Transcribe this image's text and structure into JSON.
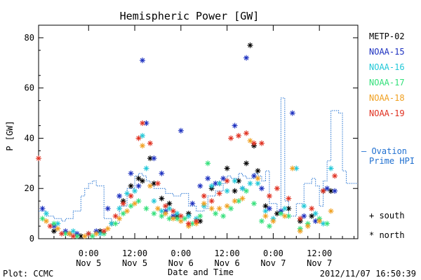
{
  "chart_data": {
    "type": "scatter",
    "title": "Hemispheric Power [GW]",
    "ylabel": "P [GW]",
    "xlabel": "Date and Time",
    "ylim": [
      0,
      85
    ],
    "yticks": [
      0,
      20,
      40,
      60,
      80
    ],
    "xlim": [
      -13,
      70
    ],
    "x_units": "hours from 2012-11-05 00:00",
    "xticks": [
      {
        "x": 0,
        "line1": "0:00",
        "line2": "Nov 5"
      },
      {
        "x": 12,
        "line1": "12:00",
        "line2": "Nov 5"
      },
      {
        "x": 24,
        "line1": "0:00",
        "line2": "Nov 6"
      },
      {
        "x": 36,
        "line1": "12:00",
        "line2": "Nov 6"
      },
      {
        "x": 48,
        "line1": "0:00",
        "line2": "Nov 7"
      },
      {
        "x": 60,
        "line1": "12:00",
        "line2": "Nov 7"
      }
    ],
    "grid": false,
    "legend_position": "right",
    "series": [
      {
        "name": "METP-02",
        "color": "#000000",
        "marker": "*",
        "points": [
          [
            -9,
            3
          ],
          [
            -5,
            2
          ],
          [
            -2,
            1
          ],
          [
            3,
            3
          ],
          [
            6,
            6
          ],
          [
            9,
            15
          ],
          [
            11,
            21
          ],
          [
            13,
            24
          ],
          [
            14,
            23
          ],
          [
            16,
            32
          ],
          [
            17,
            22
          ],
          [
            19,
            16
          ],
          [
            21,
            14
          ],
          [
            23,
            9
          ],
          [
            26,
            10
          ],
          [
            29,
            7
          ],
          [
            32,
            20
          ],
          [
            34,
            22
          ],
          [
            36,
            28
          ],
          [
            38,
            19
          ],
          [
            39,
            23
          ],
          [
            41,
            30
          ],
          [
            42,
            77
          ],
          [
            43,
            37
          ],
          [
            44,
            27
          ],
          [
            46,
            13
          ],
          [
            49,
            10
          ],
          [
            52,
            12
          ],
          [
            55,
            7
          ],
          [
            58,
            9
          ],
          [
            61,
            19
          ],
          [
            63,
            19
          ]
        ]
      },
      {
        "name": "NOAA-15",
        "color": "#1b2fbf",
        "marker": "*",
        "points": [
          [
            -12,
            12
          ],
          [
            -9,
            5
          ],
          [
            -6,
            3
          ],
          [
            -3,
            2
          ],
          [
            2,
            3
          ],
          [
            5,
            12
          ],
          [
            8,
            17
          ],
          [
            11,
            26
          ],
          [
            13,
            21
          ],
          [
            14,
            71
          ],
          [
            15,
            46
          ],
          [
            17,
            32
          ],
          [
            19,
            26
          ],
          [
            20,
            11
          ],
          [
            22,
            9
          ],
          [
            24,
            43
          ],
          [
            27,
            14
          ],
          [
            29,
            21
          ],
          [
            31,
            24
          ],
          [
            33,
            22
          ],
          [
            35,
            24
          ],
          [
            38,
            45
          ],
          [
            40,
            20
          ],
          [
            41,
            72
          ],
          [
            43,
            25
          ],
          [
            45,
            20
          ],
          [
            47,
            12
          ],
          [
            50,
            11
          ],
          [
            53,
            50
          ],
          [
            56,
            9
          ],
          [
            59,
            7
          ],
          [
            62,
            20
          ],
          [
            64,
            19
          ]
        ]
      },
      {
        "name": "NOAA-16",
        "color": "#22c8d8",
        "marker": "*",
        "points": [
          [
            -11,
            10
          ],
          [
            -8,
            6
          ],
          [
            -4,
            3
          ],
          [
            0,
            2
          ],
          [
            3,
            2
          ],
          [
            6,
            6
          ],
          [
            8,
            12
          ],
          [
            10,
            18
          ],
          [
            12,
            19
          ],
          [
            14,
            41
          ],
          [
            15,
            28
          ],
          [
            17,
            15
          ],
          [
            19,
            11
          ],
          [
            21,
            12
          ],
          [
            23,
            10
          ],
          [
            26,
            9
          ],
          [
            28,
            8
          ],
          [
            30,
            13
          ],
          [
            32,
            21
          ],
          [
            34,
            22
          ],
          [
            36,
            19
          ],
          [
            38,
            23
          ],
          [
            40,
            20
          ],
          [
            42,
            22
          ],
          [
            44,
            22
          ],
          [
            46,
            11
          ],
          [
            48,
            8
          ],
          [
            51,
            12
          ],
          [
            54,
            28
          ],
          [
            56,
            13
          ],
          [
            59,
            10
          ],
          [
            61,
            6
          ],
          [
            63,
            28
          ]
        ]
      },
      {
        "name": "NOAA-17",
        "color": "#33e07a",
        "marker": "*",
        "points": [
          [
            -12,
            8
          ],
          [
            -9,
            6
          ],
          [
            -6,
            2
          ],
          [
            -3,
            1
          ],
          [
            1,
            1
          ],
          [
            4,
            2
          ],
          [
            7,
            6
          ],
          [
            9,
            10
          ],
          [
            11,
            13
          ],
          [
            13,
            15
          ],
          [
            15,
            12
          ],
          [
            17,
            10
          ],
          [
            19,
            9
          ],
          [
            21,
            8
          ],
          [
            23,
            8
          ],
          [
            25,
            8
          ],
          [
            27,
            6
          ],
          [
            29,
            9
          ],
          [
            31,
            30
          ],
          [
            33,
            10
          ],
          [
            35,
            9
          ],
          [
            37,
            12
          ],
          [
            39,
            15
          ],
          [
            41,
            19
          ],
          [
            43,
            14
          ],
          [
            45,
            7
          ],
          [
            47,
            5
          ],
          [
            50,
            10
          ],
          [
            52,
            9
          ],
          [
            55,
            4
          ],
          [
            57,
            6
          ],
          [
            60,
            8
          ],
          [
            62,
            6
          ]
        ]
      },
      {
        "name": "NOAA-18",
        "color": "#f0a020",
        "marker": "*",
        "points": [
          [
            -11,
            7
          ],
          [
            -8,
            4
          ],
          [
            -5,
            2
          ],
          [
            -1,
            1
          ],
          [
            2,
            2
          ],
          [
            5,
            4
          ],
          [
            8,
            8
          ],
          [
            10,
            11
          ],
          [
            12,
            14
          ],
          [
            14,
            37
          ],
          [
            16,
            21
          ],
          [
            18,
            12
          ],
          [
            20,
            10
          ],
          [
            22,
            8
          ],
          [
            24,
            7
          ],
          [
            26,
            5
          ],
          [
            28,
            6
          ],
          [
            30,
            14
          ],
          [
            32,
            12
          ],
          [
            34,
            12
          ],
          [
            36,
            13
          ],
          [
            38,
            15
          ],
          [
            40,
            16
          ],
          [
            42,
            39
          ],
          [
            44,
            24
          ],
          [
            46,
            9
          ],
          [
            48,
            7
          ],
          [
            51,
            9
          ],
          [
            53,
            28
          ],
          [
            55,
            3
          ],
          [
            57,
            5
          ],
          [
            60,
            7
          ],
          [
            63,
            11
          ]
        ]
      },
      {
        "name": "NOAA-19",
        "color": "#e03020",
        "marker": "*",
        "points": [
          [
            -13,
            32
          ],
          [
            -10,
            5
          ],
          [
            -7,
            2
          ],
          [
            -4,
            1
          ],
          [
            0,
            2
          ],
          [
            4,
            3
          ],
          [
            7,
            9
          ],
          [
            9,
            14
          ],
          [
            11,
            17
          ],
          [
            13,
            40
          ],
          [
            14,
            46
          ],
          [
            16,
            38
          ],
          [
            18,
            22
          ],
          [
            20,
            13
          ],
          [
            22,
            11
          ],
          [
            24,
            9
          ],
          [
            26,
            6
          ],
          [
            28,
            7
          ],
          [
            30,
            17
          ],
          [
            32,
            15
          ],
          [
            34,
            18
          ],
          [
            36,
            23
          ],
          [
            37,
            40
          ],
          [
            39,
            41
          ],
          [
            41,
            42
          ],
          [
            43,
            38
          ],
          [
            45,
            38
          ],
          [
            47,
            17
          ],
          [
            49,
            20
          ],
          [
            52,
            16
          ],
          [
            55,
            8
          ],
          [
            58,
            12
          ],
          [
            61,
            19
          ],
          [
            64,
            25
          ]
        ]
      }
    ],
    "ovation": {
      "name": "Ovation Prime HPI",
      "color": "#1e6fd0",
      "style": "dotted-step",
      "steps": [
        [
          -13,
          11
        ],
        [
          -11,
          9
        ],
        [
          -9,
          8
        ],
        [
          -7,
          7
        ],
        [
          -6,
          8
        ],
        [
          -4,
          11
        ],
        [
          -2,
          17
        ],
        [
          -1,
          20
        ],
        [
          0,
          22
        ],
        [
          1,
          23
        ],
        [
          2,
          21
        ],
        [
          4,
          8
        ],
        [
          6,
          6
        ],
        [
          8,
          13
        ],
        [
          10,
          20
        ],
        [
          12,
          25
        ],
        [
          13,
          26
        ],
        [
          14,
          25
        ],
        [
          15,
          23
        ],
        [
          16,
          21
        ],
        [
          17,
          20
        ],
        [
          18,
          20
        ],
        [
          20,
          18
        ],
        [
          22,
          17
        ],
        [
          24,
          18
        ],
        [
          26,
          13
        ],
        [
          28,
          11
        ],
        [
          30,
          12
        ],
        [
          31,
          17
        ],
        [
          33,
          19
        ],
        [
          35,
          22
        ],
        [
          36,
          25
        ],
        [
          37,
          24
        ],
        [
          39,
          26
        ],
        [
          40,
          25
        ],
        [
          41,
          24
        ],
        [
          43,
          26
        ],
        [
          44,
          25
        ],
        [
          45,
          23
        ],
        [
          46,
          27
        ],
        [
          47,
          14
        ],
        [
          49,
          11
        ],
        [
          50,
          56
        ],
        [
          51,
          15
        ],
        [
          52,
          9
        ],
        [
          54,
          14
        ],
        [
          56,
          22
        ],
        [
          58,
          24
        ],
        [
          59,
          21
        ],
        [
          60,
          13
        ],
        [
          61,
          23
        ],
        [
          62,
          31
        ],
        [
          63,
          51
        ],
        [
          65,
          50
        ],
        [
          66,
          27
        ],
        [
          67,
          22
        ]
      ]
    },
    "legend_entries": [
      "METP-02",
      "NOAA-15",
      "NOAA-16",
      "NOAA-17",
      "NOAA-18",
      "NOAA-19"
    ],
    "ovation_label_line1": "— Ovation",
    "ovation_label_line2": "Prime HPI",
    "marker_legend": [
      {
        "symbol": "+",
        "label": "south"
      },
      {
        "symbol": "*",
        "label": "north"
      }
    ]
  },
  "footer": {
    "left": "Plot: CCMC",
    "right": "2012/11/07 16:50:39"
  }
}
